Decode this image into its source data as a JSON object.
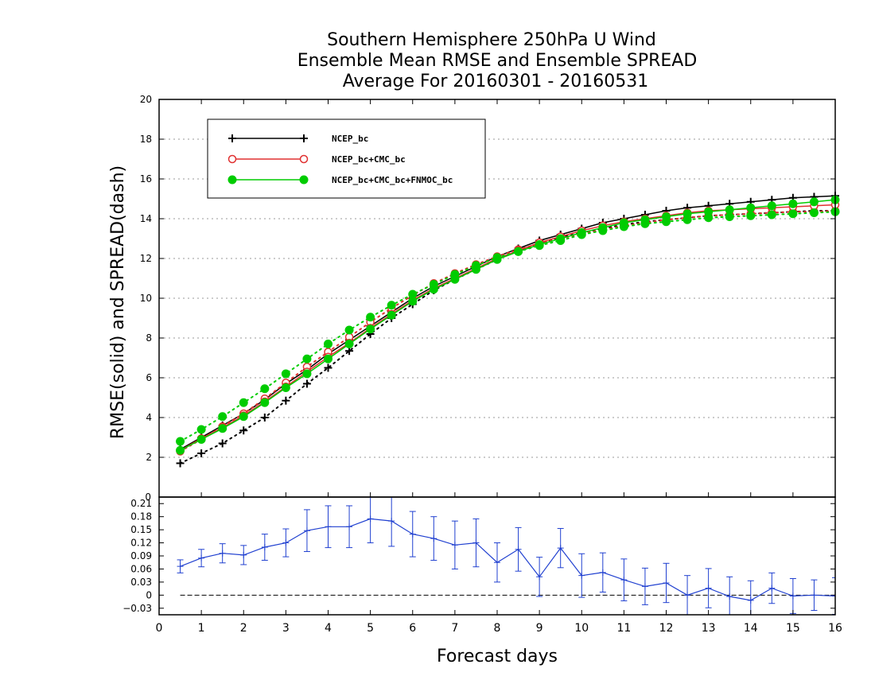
{
  "title": {
    "line1": "Southern Hemisphere 250hPa U Wind",
    "line2": "Ensemble Mean RMSE and Ensemble SPREAD",
    "line3": "Average For 20160301 - 20160531"
  },
  "chart_data": [
    {
      "type": "line",
      "ylabel": "RMSE(solid) and SPREAD(dash)",
      "xlim": [
        0,
        16
      ],
      "ylim": [
        0,
        20
      ],
      "yticks": [
        2,
        4,
        6,
        8,
        10,
        12,
        14,
        16,
        18,
        20
      ],
      "grid": true,
      "legend_position": "top-left",
      "x": [
        0.5,
        1,
        1.5,
        2,
        2.5,
        3,
        3.5,
        4,
        4.5,
        5,
        5.5,
        6,
        6.5,
        7,
        7.5,
        8,
        8.5,
        9,
        9.5,
        10,
        10.5,
        11,
        11.5,
        12,
        12.5,
        13,
        13.5,
        14,
        14.5,
        15,
        15.5,
        16
      ],
      "series": [
        {
          "name": "NCEP_bc",
          "color": "#000000",
          "marker": "plus",
          "rmse": [
            2.4,
            3.0,
            3.6,
            4.2,
            4.9,
            5.7,
            6.4,
            7.2,
            7.9,
            8.6,
            9.3,
            10.0,
            10.6,
            11.1,
            11.6,
            12.1,
            12.5,
            12.9,
            13.2,
            13.5,
            13.8,
            14.0,
            14.2,
            14.4,
            14.55,
            14.65,
            14.75,
            14.85,
            14.95,
            15.05,
            15.1,
            15.15
          ],
          "spread": [
            1.7,
            2.2,
            2.7,
            3.35,
            4.0,
            4.85,
            5.7,
            6.5,
            7.35,
            8.2,
            9.0,
            9.7,
            10.4,
            10.95,
            11.45,
            11.95,
            12.4,
            12.75,
            13.05,
            13.3,
            13.5,
            13.7,
            13.85,
            13.95,
            14.05,
            14.15,
            14.2,
            14.25,
            14.3,
            14.35,
            14.4,
            14.4
          ]
        },
        {
          "name": "NCEP_bc+CMC_bc",
          "color": "#e03030",
          "marker": "open-circle",
          "rmse": [
            2.35,
            2.95,
            3.5,
            4.1,
            4.8,
            5.55,
            6.3,
            7.05,
            7.75,
            8.5,
            9.2,
            9.9,
            10.5,
            11.0,
            11.5,
            12.0,
            12.4,
            12.8,
            13.1,
            13.4,
            13.65,
            13.85,
            14.0,
            14.15,
            14.3,
            14.4,
            14.45,
            14.5,
            14.55,
            14.6,
            14.65,
            14.7
          ],
          "spread": [
            2.3,
            2.9,
            3.55,
            4.2,
            4.95,
            5.75,
            6.55,
            7.3,
            8.05,
            8.8,
            9.5,
            10.15,
            10.75,
            11.25,
            11.7,
            12.1,
            12.45,
            12.75,
            13.0,
            13.25,
            13.45,
            13.65,
            13.8,
            13.95,
            14.05,
            14.15,
            14.2,
            14.25,
            14.3,
            14.35,
            14.35,
            14.4
          ]
        },
        {
          "name": "NCEP_bc+CMC_bc+FNMOC_bc",
          "color": "#00cc00",
          "marker": "filled-circle",
          "rmse": [
            2.35,
            2.9,
            3.45,
            4.05,
            4.75,
            5.5,
            6.2,
            6.95,
            7.7,
            8.45,
            9.15,
            9.85,
            10.45,
            10.95,
            11.45,
            11.95,
            12.35,
            12.7,
            13.0,
            13.3,
            13.55,
            13.8,
            13.95,
            14.1,
            14.25,
            14.35,
            14.45,
            14.55,
            14.65,
            14.75,
            14.85,
            14.95
          ],
          "spread": [
            2.8,
            3.4,
            4.05,
            4.75,
            5.45,
            6.2,
            6.95,
            7.7,
            8.4,
            9.05,
            9.65,
            10.2,
            10.7,
            11.2,
            11.65,
            12.05,
            12.35,
            12.65,
            12.9,
            13.2,
            13.4,
            13.6,
            13.75,
            13.85,
            13.95,
            14.05,
            14.1,
            14.15,
            14.2,
            14.25,
            14.3,
            14.35
          ]
        }
      ]
    },
    {
      "type": "line",
      "xlabel": "Forecast days",
      "xlim": [
        0,
        16
      ],
      "ylim": [
        -0.045,
        0.225
      ],
      "xticks": [
        0,
        1,
        2,
        3,
        4,
        5,
        6,
        7,
        8,
        9,
        10,
        11,
        12,
        13,
        14,
        15,
        16
      ],
      "yticks": [
        -0.03,
        0,
        0.03,
        0.06,
        0.09,
        0.12,
        0.15,
        0.18,
        0.21
      ],
      "ytick_labels": [
        "−0.03",
        "0",
        "0.03",
        "0.06",
        "0.09",
        "0.12",
        "0.15",
        "0.18",
        "0.21"
      ],
      "top_label": "0",
      "grid": false,
      "zero_line": true,
      "series": [
        {
          "color": "#2040d0",
          "x": [
            0.5,
            1,
            1.5,
            2,
            2.5,
            3,
            3.5,
            4,
            4.5,
            5,
            5.5,
            6,
            6.5,
            7,
            7.5,
            8,
            8.5,
            9,
            9.5,
            10,
            10.5,
            11,
            11.5,
            12,
            12.5,
            13,
            13.5,
            14,
            14.5,
            15,
            15.5,
            16
          ],
          "values": [
            0.066,
            0.085,
            0.096,
            0.092,
            0.11,
            0.12,
            0.148,
            0.157,
            0.157,
            0.175,
            0.17,
            0.14,
            0.13,
            0.115,
            0.12,
            0.075,
            0.105,
            0.042,
            0.108,
            0.045,
            0.052,
            0.035,
            0.02,
            0.028,
            0.0,
            0.016,
            -0.003,
            -0.012,
            0.016,
            -0.002,
            0.0,
            -0.002
          ],
          "error": [
            0.015,
            0.02,
            0.022,
            0.022,
            0.03,
            0.032,
            0.048,
            0.048,
            0.048,
            0.055,
            0.058,
            0.052,
            0.05,
            0.055,
            0.055,
            0.045,
            0.05,
            0.045,
            0.045,
            0.05,
            0.045,
            0.048,
            0.042,
            0.045,
            0.045,
            0.045,
            0.045,
            0.045,
            0.035,
            0.04,
            0.035,
            0.042
          ]
        }
      ]
    }
  ]
}
